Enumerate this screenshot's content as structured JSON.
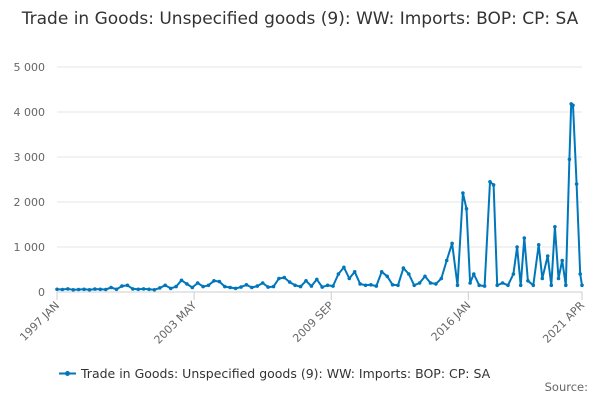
{
  "chart_data": {
    "type": "line",
    "title": "Trade in Goods: Unspecified goods (9): WW: Imports: BOP: CP: SA",
    "xlabel": "",
    "ylabel": "",
    "ylim": [
      0,
      5000
    ],
    "yticks": [
      0,
      1000,
      2000,
      3000,
      4000,
      5000
    ],
    "ytick_labels": [
      "0",
      "1 000",
      "2 000",
      "3 000",
      "4 000",
      "5 000"
    ],
    "xrange": [
      "1997-01",
      "2021-04"
    ],
    "xticks": [
      {
        "date": "1997-01",
        "label": "1997 JAN"
      },
      {
        "date": "2003-05",
        "label": "2003 MAY"
      },
      {
        "date": "2009-09",
        "label": "2009 SEP"
      },
      {
        "date": "2016-01",
        "label": "2016 JAN"
      },
      {
        "date": "2021-04",
        "label": "2021 APR"
      }
    ],
    "grid": true,
    "legend_position": "bottom",
    "series": [
      {
        "name": "Trade in Goods: Unspecified goods (9): WW: Imports: BOP: CP: SA",
        "color": "#0077bb",
        "points": [
          [
            "1997-01",
            60
          ],
          [
            "1997-04",
            55
          ],
          [
            "1997-07",
            70
          ],
          [
            "1997-10",
            50
          ],
          [
            "1998-01",
            55
          ],
          [
            "1998-04",
            60
          ],
          [
            "1998-07",
            50
          ],
          [
            "1998-10",
            65
          ],
          [
            "1999-01",
            60
          ],
          [
            "1999-04",
            55
          ],
          [
            "1999-07",
            100
          ],
          [
            "1999-10",
            60
          ],
          [
            "2000-01",
            130
          ],
          [
            "2000-04",
            150
          ],
          [
            "2000-07",
            70
          ],
          [
            "2000-10",
            60
          ],
          [
            "2001-01",
            70
          ],
          [
            "2001-04",
            60
          ],
          [
            "2001-07",
            50
          ],
          [
            "2001-10",
            90
          ],
          [
            "2002-01",
            150
          ],
          [
            "2002-04",
            80
          ],
          [
            "2002-07",
            120
          ],
          [
            "2002-10",
            260
          ],
          [
            "2003-01",
            180
          ],
          [
            "2003-04",
            100
          ],
          [
            "2003-07",
            200
          ],
          [
            "2003-10",
            120
          ],
          [
            "2004-01",
            150
          ],
          [
            "2004-04",
            250
          ],
          [
            "2004-07",
            230
          ],
          [
            "2004-10",
            120
          ],
          [
            "2005-01",
            100
          ],
          [
            "2005-04",
            80
          ],
          [
            "2005-07",
            110
          ],
          [
            "2005-10",
            160
          ],
          [
            "2006-01",
            100
          ],
          [
            "2006-04",
            130
          ],
          [
            "2006-07",
            200
          ],
          [
            "2006-10",
            110
          ],
          [
            "2007-01",
            120
          ],
          [
            "2007-04",
            300
          ],
          [
            "2007-07",
            320
          ],
          [
            "2007-10",
            220
          ],
          [
            "2008-01",
            150
          ],
          [
            "2008-04",
            120
          ],
          [
            "2008-07",
            250
          ],
          [
            "2008-10",
            130
          ],
          [
            "2009-01",
            280
          ],
          [
            "2009-04",
            110
          ],
          [
            "2009-07",
            150
          ],
          [
            "2009-10",
            130
          ],
          [
            "2010-01",
            400
          ],
          [
            "2010-04",
            550
          ],
          [
            "2010-07",
            300
          ],
          [
            "2010-10",
            450
          ],
          [
            "2011-01",
            180
          ],
          [
            "2011-04",
            150
          ],
          [
            "2011-07",
            160
          ],
          [
            "2011-10",
            130
          ],
          [
            "2012-01",
            450
          ],
          [
            "2012-04",
            350
          ],
          [
            "2012-07",
            160
          ],
          [
            "2012-10",
            150
          ],
          [
            "2013-01",
            530
          ],
          [
            "2013-04",
            400
          ],
          [
            "2013-07",
            150
          ],
          [
            "2013-10",
            200
          ],
          [
            "2014-01",
            350
          ],
          [
            "2014-04",
            200
          ],
          [
            "2014-07",
            180
          ],
          [
            "2014-10",
            300
          ],
          [
            "2015-01",
            700
          ],
          [
            "2015-04",
            1080
          ],
          [
            "2015-07",
            150
          ],
          [
            "2015-10",
            2200
          ],
          [
            "2015-12",
            1850
          ],
          [
            "2016-02",
            200
          ],
          [
            "2016-04",
            400
          ],
          [
            "2016-07",
            150
          ],
          [
            "2016-10",
            130
          ],
          [
            "2017-01",
            2450
          ],
          [
            "2017-03",
            2380
          ],
          [
            "2017-05",
            150
          ],
          [
            "2017-08",
            200
          ],
          [
            "2017-11",
            150
          ],
          [
            "2018-02",
            400
          ],
          [
            "2018-04",
            1000
          ],
          [
            "2018-06",
            150
          ],
          [
            "2018-08",
            1200
          ],
          [
            "2018-10",
            250
          ],
          [
            "2019-01",
            150
          ],
          [
            "2019-04",
            1050
          ],
          [
            "2019-06",
            300
          ],
          [
            "2019-09",
            800
          ],
          [
            "2019-11",
            150
          ],
          [
            "2020-01",
            1450
          ],
          [
            "2020-03",
            300
          ],
          [
            "2020-05",
            700
          ],
          [
            "2020-07",
            150
          ],
          [
            "2020-09",
            2950
          ],
          [
            "2020-10",
            4180
          ],
          [
            "2020-11",
            4150
          ],
          [
            "2021-01",
            2400
          ],
          [
            "2021-03",
            400
          ],
          [
            "2021-04",
            150
          ]
        ]
      }
    ]
  },
  "legend": {
    "label": "Trade in Goods: Unspecified goods (9): WW: Imports: BOP: CP: SA"
  },
  "credit": "Source:"
}
